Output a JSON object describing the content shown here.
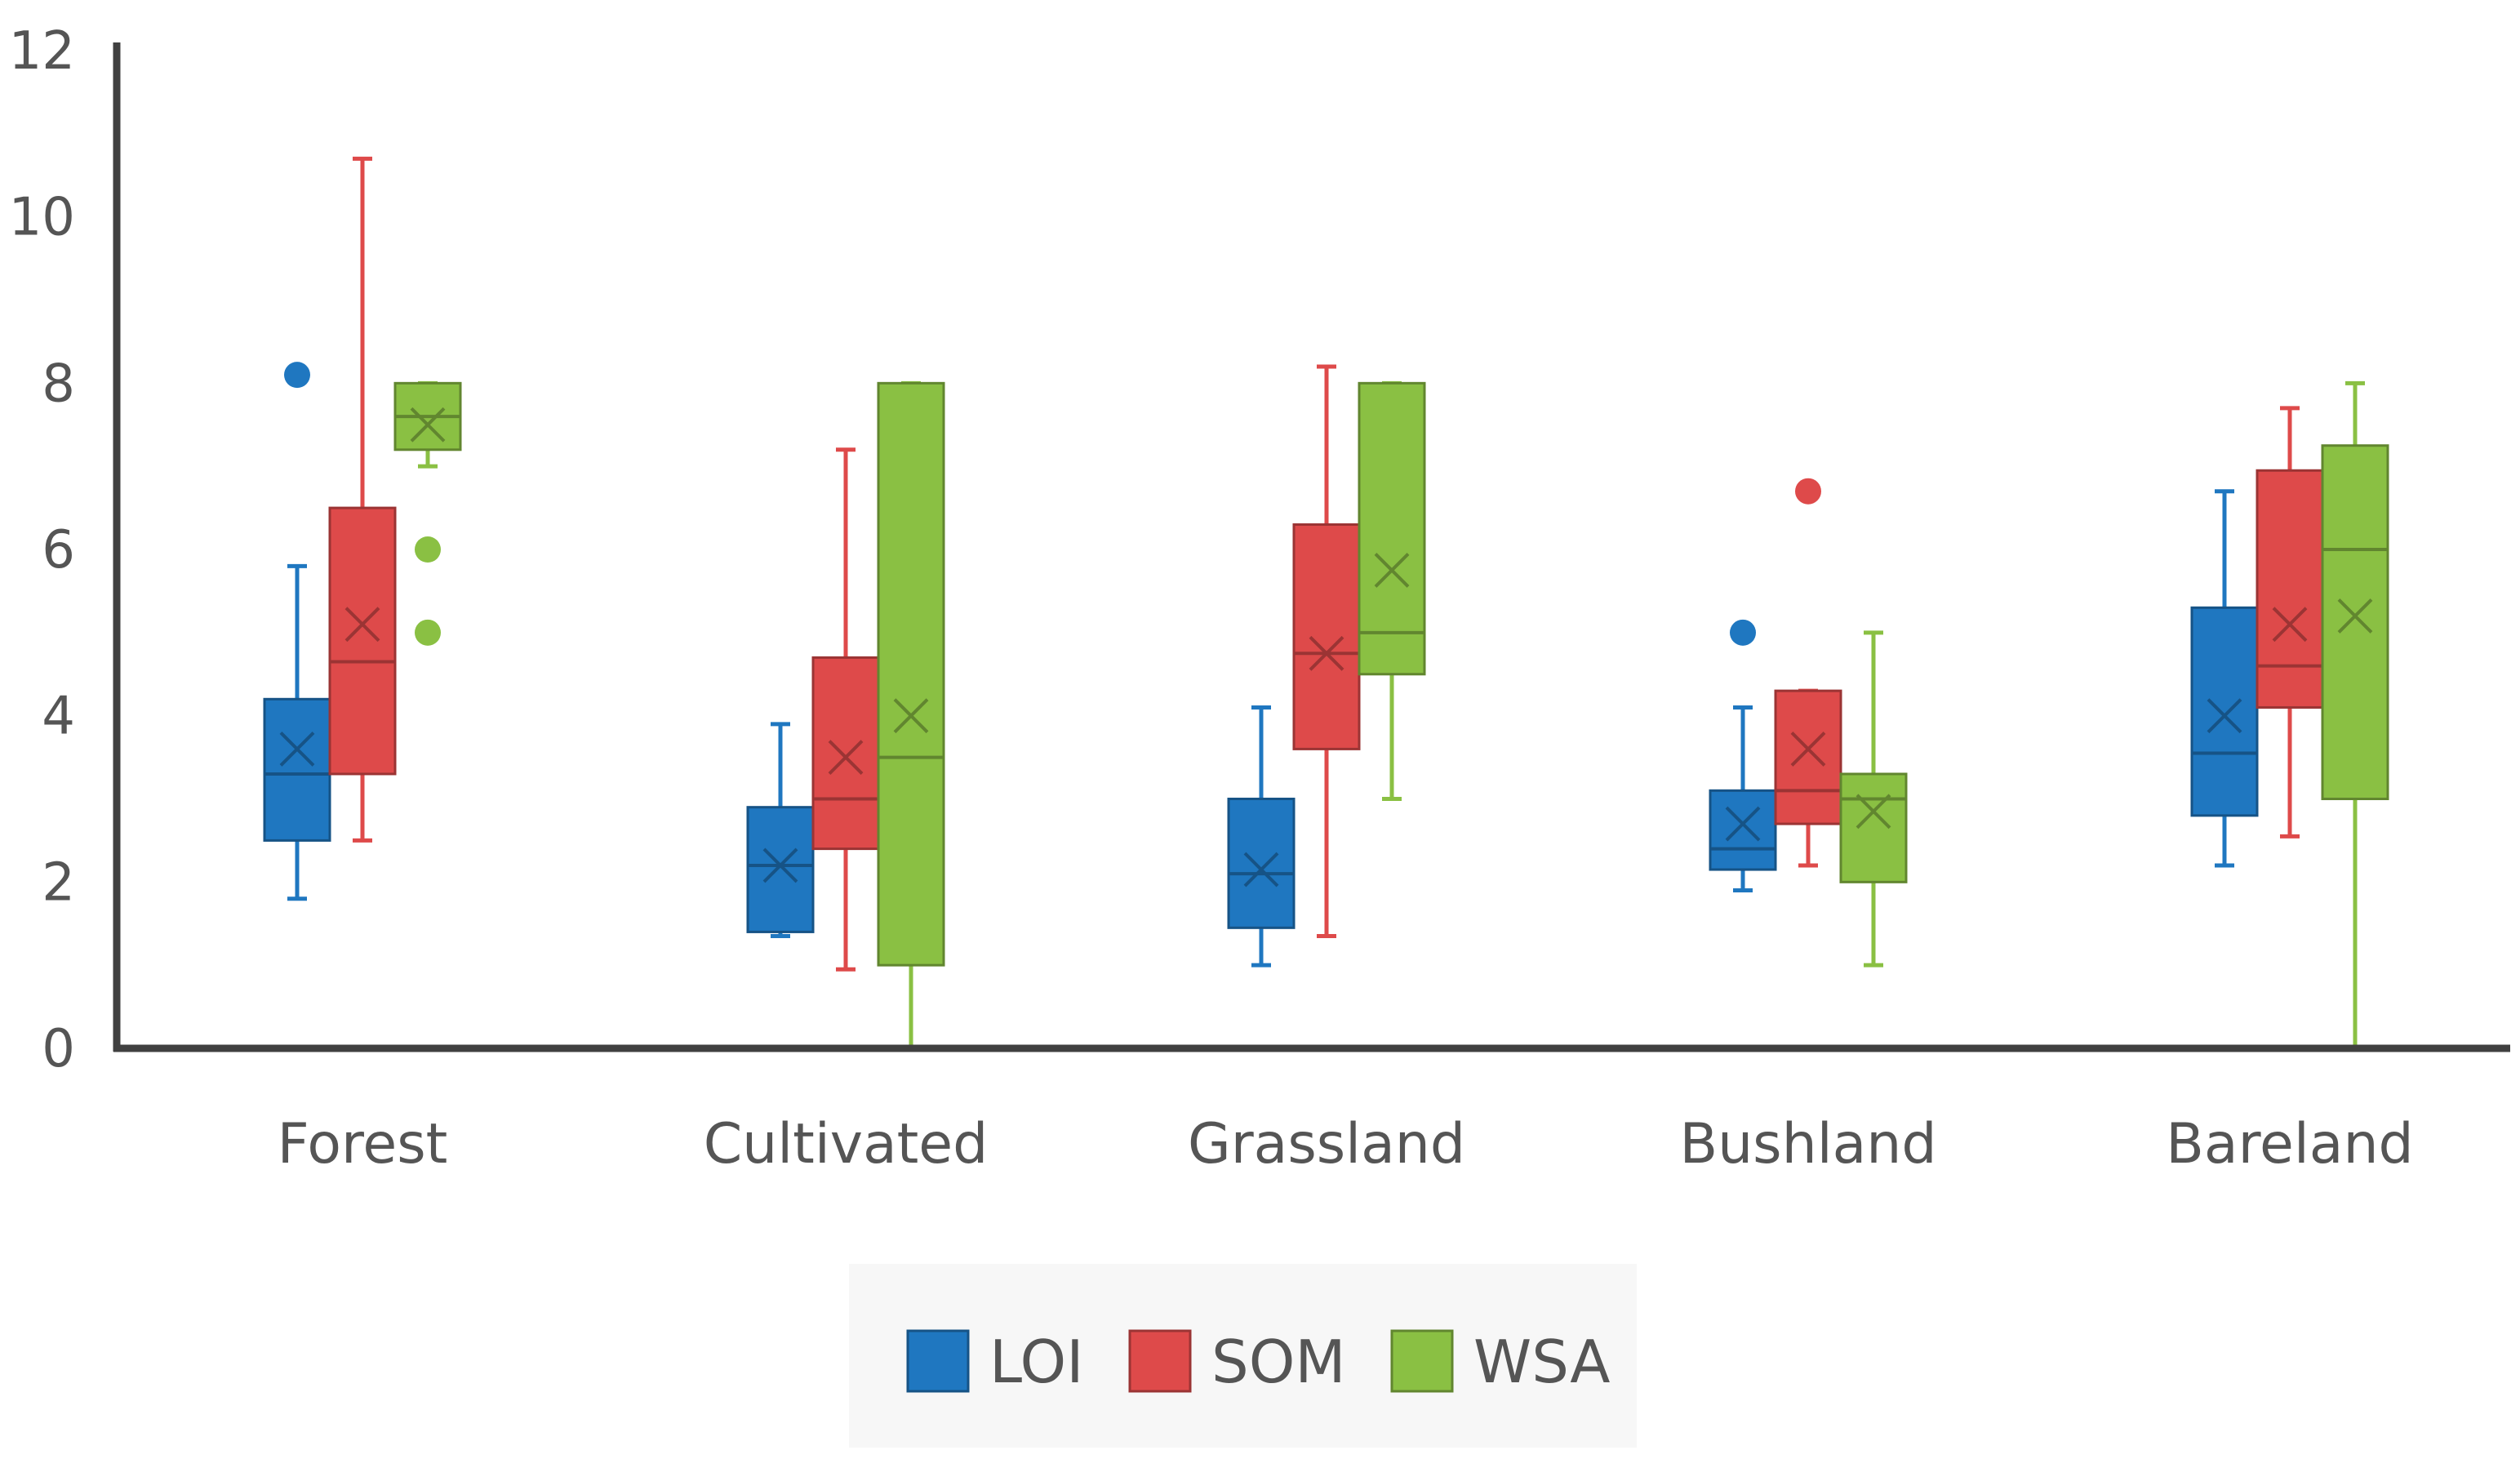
{
  "chart_data": {
    "type": "box",
    "title": "",
    "xlabel": "",
    "ylabel": "",
    "ylim": [
      0,
      12
    ],
    "yticks": [
      0,
      2,
      4,
      6,
      8,
      10,
      12
    ],
    "ytick_labels": [
      "0",
      "2",
      "4",
      "6",
      "8",
      "10",
      "12"
    ],
    "grid": false,
    "legend_position": "bottom",
    "categories": [
      "Forest",
      "Cultivated",
      "Grassland",
      "Bushland",
      "Bareland"
    ],
    "series": [
      {
        "name": "LOI",
        "color": "#1f77c0",
        "boxes": [
          {
            "whisker_low": 1.8,
            "q1": 2.5,
            "median": 3.3,
            "q3": 4.2,
            "whisker_high": 5.8,
            "mean": 3.6,
            "outliers": [
              8.1
            ]
          },
          {
            "whisker_low": 1.35,
            "q1": 1.4,
            "median": 2.2,
            "q3": 2.9,
            "whisker_high": 3.9,
            "mean": 2.2,
            "outliers": []
          },
          {
            "whisker_low": 1.0,
            "q1": 1.45,
            "median": 2.1,
            "q3": 3.0,
            "whisker_high": 4.1,
            "mean": 2.15,
            "outliers": []
          },
          {
            "whisker_low": 1.9,
            "q1": 2.15,
            "median": 2.4,
            "q3": 3.1,
            "whisker_high": 4.1,
            "mean": 2.7,
            "outliers": [
              5.0
            ]
          },
          {
            "whisker_low": 2.2,
            "q1": 2.8,
            "median": 3.55,
            "q3": 5.3,
            "whisker_high": 6.7,
            "mean": 4.0,
            "outliers": []
          }
        ]
      },
      {
        "name": "SOM",
        "color": "#de4a4a",
        "boxes": [
          {
            "whisker_low": 2.5,
            "q1": 3.3,
            "median": 4.65,
            "q3": 6.5,
            "whisker_high": 10.7,
            "mean": 5.1,
            "outliers": []
          },
          {
            "whisker_low": 0.95,
            "q1": 2.4,
            "median": 3.0,
            "q3": 4.7,
            "whisker_high": 7.2,
            "mean": 3.5,
            "outliers": []
          },
          {
            "whisker_low": 1.35,
            "q1": 3.6,
            "median": 4.75,
            "q3": 6.3,
            "whisker_high": 8.2,
            "mean": 4.75,
            "outliers": []
          },
          {
            "whisker_low": 2.2,
            "q1": 2.7,
            "median": 3.1,
            "q3": 4.3,
            "whisker_high": 4.3,
            "mean": 3.6,
            "outliers": [
              6.7
            ]
          },
          {
            "whisker_low": 2.55,
            "q1": 4.1,
            "median": 4.6,
            "q3": 6.95,
            "whisker_high": 7.7,
            "mean": 5.1,
            "outliers": []
          }
        ]
      },
      {
        "name": "WSA",
        "color": "#8ac043",
        "boxes": [
          {
            "whisker_low": 7.0,
            "q1": 7.2,
            "median": 7.6,
            "q3": 8.0,
            "whisker_high": 8.0,
            "mean": 7.5,
            "outliers": [
              6.0,
              5.0
            ]
          },
          {
            "whisker_low": 0.0,
            "q1": 1.0,
            "median": 3.5,
            "q3": 8.0,
            "whisker_high": 8.0,
            "mean": 4.0,
            "outliers": []
          },
          {
            "whisker_low": 3.0,
            "q1": 4.5,
            "median": 5.0,
            "q3": 8.0,
            "whisker_high": 8.0,
            "mean": 5.75,
            "outliers": []
          },
          {
            "whisker_low": 1.0,
            "q1": 2.0,
            "median": 3.0,
            "q3": 3.3,
            "whisker_high": 5.0,
            "mean": 2.85,
            "outliers": []
          },
          {
            "whisker_low": 0.0,
            "q1": 3.0,
            "median": 6.0,
            "q3": 7.25,
            "whisker_high": 8.0,
            "mean": 5.2,
            "outliers": []
          }
        ]
      }
    ]
  }
}
